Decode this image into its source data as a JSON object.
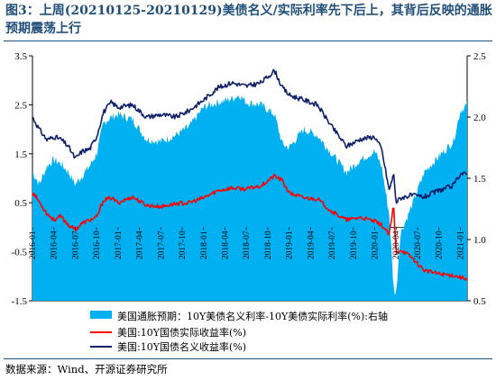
{
  "title": "图3：上周(20210125-20210129)美债名义/实际利率先下后上，其背后反映的通胀预期震荡上行",
  "source": "数据来源：Wind、开源证券研究所",
  "chart_data": {
    "type": "area+line",
    "x_ticks": [
      "2016-01",
      "2016-04",
      "2016-07",
      "2016-10",
      "2017-01",
      "2017-04",
      "2017-07",
      "2017-10",
      "2018-01",
      "2018-04",
      "2018-07",
      "2018-10",
      "2019-01",
      "2019-04",
      "2019-07",
      "2019-10",
      "2020-01",
      "2020-04",
      "2020-07",
      "2020-10",
      "2021-01"
    ],
    "y_left": {
      "min": -1.5,
      "max": 3.5,
      "ticks": [
        "3.5",
        "2.5",
        "1.5",
        "0.5",
        "-0.5",
        "-1.5"
      ]
    },
    "y_right": {
      "min": 0.5,
      "max": 2.5,
      "ticks": [
        "2.5",
        "2.0",
        "1.5",
        "1.0",
        "0.5"
      ]
    },
    "colors": {
      "breakeven": "#00b0f0",
      "real": "#ff0000",
      "nominal": "#0d1f6b"
    },
    "grid": false,
    "legend_position": "bottom",
    "series": [
      {
        "name": "美国通胀预期：10Y美债名义利率-10Y美债实际利率(%):右轴",
        "axis": "right",
        "kind": "area",
        "x": [
          2016.0,
          2016.08,
          2016.17,
          2016.25,
          2016.33,
          2016.42,
          2016.5,
          2016.58,
          2016.67,
          2016.75,
          2016.83,
          2016.92,
          2017.0,
          2017.17,
          2017.33,
          2017.5,
          2017.67,
          2017.83,
          2018.0,
          2018.17,
          2018.33,
          2018.42,
          2018.5,
          2018.67,
          2018.83,
          2018.92,
          2019.0,
          2019.17,
          2019.33,
          2019.5,
          2019.67,
          2019.83,
          2020.0,
          2020.08,
          2020.17,
          2020.22,
          2020.25,
          2020.3,
          2020.42,
          2020.58,
          2020.75,
          2020.92,
          2021.0,
          2021.08
        ],
        "values": [
          1.55,
          1.45,
          1.6,
          1.65,
          1.62,
          1.55,
          1.45,
          1.52,
          1.6,
          1.7,
          1.95,
          2.0,
          2.02,
          1.98,
          1.82,
          1.8,
          1.85,
          1.92,
          2.08,
          2.12,
          2.15,
          2.18,
          2.12,
          2.1,
          2.02,
          1.78,
          1.75,
          1.9,
          1.85,
          1.7,
          1.55,
          1.65,
          1.72,
          1.6,
          1.2,
          0.6,
          0.55,
          1.05,
          1.25,
          1.55,
          1.68,
          1.8,
          2.05,
          2.1
        ]
      },
      {
        "name": "美国:10Y国债实际收益率(%)",
        "axis": "left",
        "kind": "line",
        "x": [
          2016.0,
          2016.08,
          2016.17,
          2016.25,
          2016.33,
          2016.42,
          2016.5,
          2016.58,
          2016.67,
          2016.75,
          2016.83,
          2016.92,
          2017.0,
          2017.17,
          2017.33,
          2017.5,
          2017.67,
          2017.83,
          2018.0,
          2018.17,
          2018.33,
          2018.5,
          2018.67,
          2018.83,
          2018.92,
          2019.0,
          2019.17,
          2019.33,
          2019.5,
          2019.67,
          2019.83,
          2020.0,
          2020.08,
          2020.17,
          2020.22,
          2020.25,
          2020.3,
          2020.42,
          2020.58,
          2020.75,
          2020.92,
          2021.0,
          2021.08
        ],
        "values": [
          0.72,
          0.52,
          0.28,
          0.15,
          0.22,
          0.05,
          -0.05,
          0.08,
          0.15,
          0.2,
          0.55,
          0.6,
          0.5,
          0.62,
          0.45,
          0.42,
          0.48,
          0.5,
          0.6,
          0.75,
          0.8,
          0.78,
          0.85,
          1.05,
          0.95,
          0.7,
          0.6,
          0.58,
          0.32,
          0.15,
          0.2,
          0.12,
          0.05,
          -0.15,
          0.45,
          -0.55,
          -0.45,
          -0.6,
          -0.88,
          -0.95,
          -0.98,
          -1.02,
          -1.05
        ]
      },
      {
        "name": "美国:10Y国债名义收益率(%)",
        "axis": "left",
        "kind": "line",
        "x": [
          2016.0,
          2016.08,
          2016.17,
          2016.25,
          2016.33,
          2016.42,
          2016.5,
          2016.58,
          2016.67,
          2016.75,
          2016.83,
          2016.92,
          2017.0,
          2017.17,
          2017.33,
          2017.5,
          2017.67,
          2017.83,
          2018.0,
          2018.17,
          2018.33,
          2018.5,
          2018.67,
          2018.83,
          2018.92,
          2019.0,
          2019.17,
          2019.33,
          2019.5,
          2019.67,
          2019.83,
          2020.0,
          2020.08,
          2020.17,
          2020.22,
          2020.25,
          2020.3,
          2020.42,
          2020.58,
          2020.75,
          2020.92,
          2021.0,
          2021.08
        ],
        "values": [
          2.25,
          2.0,
          1.78,
          1.85,
          1.8,
          1.65,
          1.4,
          1.55,
          1.6,
          1.85,
          2.35,
          2.55,
          2.45,
          2.5,
          2.25,
          2.3,
          2.25,
          2.38,
          2.6,
          2.85,
          2.95,
          2.88,
          2.95,
          3.2,
          2.85,
          2.7,
          2.6,
          2.5,
          2.05,
          1.65,
          1.8,
          1.85,
          1.6,
          0.75,
          1.1,
          0.5,
          0.6,
          0.65,
          0.62,
          0.75,
          0.85,
          1.1,
          1.08
        ]
      }
    ]
  }
}
